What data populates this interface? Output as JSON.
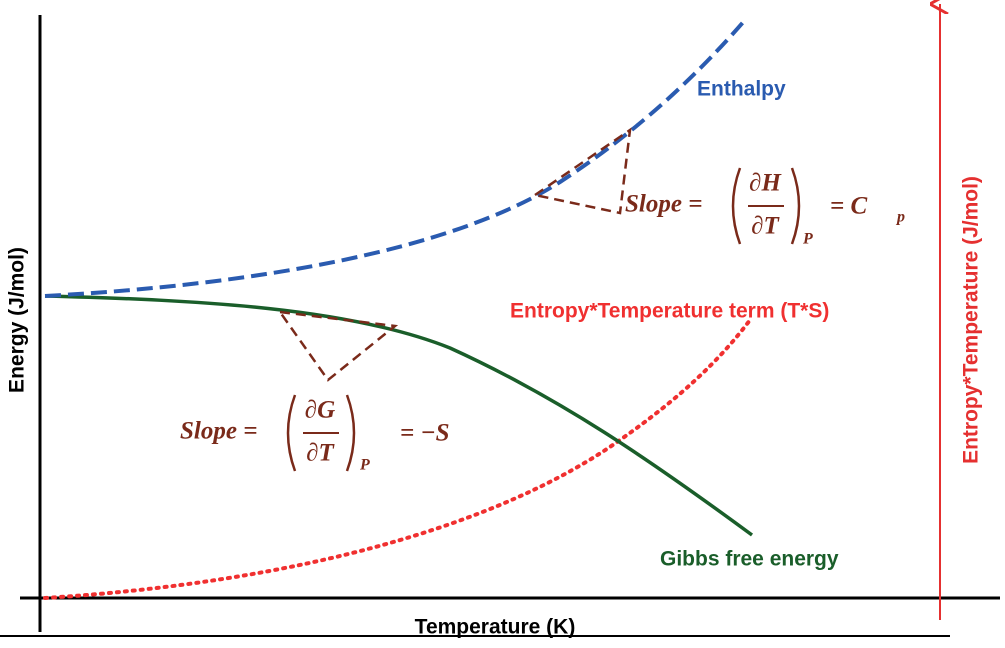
{
  "axes": {
    "x_label": "Temperature (K)",
    "y_label": "Energy (J/mol)",
    "y2_label": "Entropy*Temperature (J/mol)"
  },
  "curves": {
    "enthalpy": "Enthalpy",
    "entropy_temperature": "Entropy*Temperature term (T*S)",
    "gibbs": "Gibbs free energy"
  },
  "annotations": {
    "enthalpy_slope": {
      "lhs": "Slope =",
      "numerator": "∂H",
      "denominator": "∂T",
      "subscript": "P",
      "rhs": "= C",
      "rhs_subscript": "p"
    },
    "gibbs_slope": {
      "lhs": "Slope =",
      "numerator": "∂G",
      "denominator": "∂T",
      "subscript": "P",
      "rhs": "= −S"
    }
  }
}
